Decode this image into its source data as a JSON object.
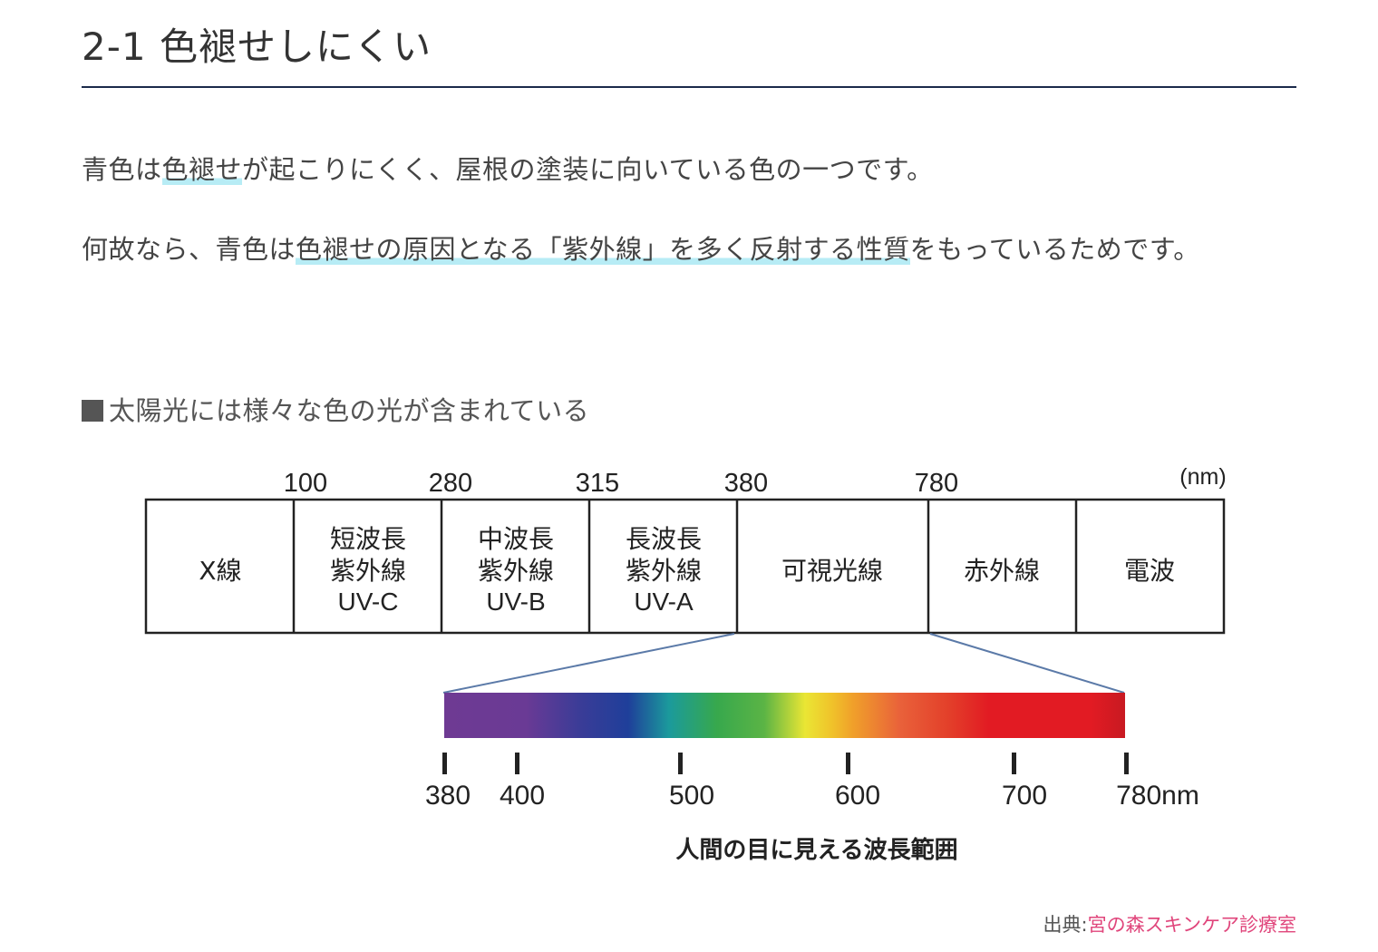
{
  "section": {
    "heading": "2-1 色褪せしにくい"
  },
  "paragraphs": [
    {
      "pre": "青色は",
      "highlight": "色褪せ",
      "post": "が起こりにくく、屋根の塗装に向いている色の一つです。"
    },
    {
      "pre": "何故なら、青色は",
      "highlight": "色褪せの原因となる「紫外線」を多く反射する性質",
      "post": "をもっているためです。"
    }
  ],
  "figure": {
    "caption": "太陽光には様々な色の光が含まれている",
    "unit_label": "(nm)",
    "boundaries": [
      "100",
      "280",
      "315",
      "380",
      "780"
    ],
    "bands": [
      {
        "lines": [
          "X線"
        ]
      },
      {
        "lines": [
          "短波長",
          "紫外線",
          "UV-C"
        ]
      },
      {
        "lines": [
          "中波長",
          "紫外線",
          "UV-B"
        ]
      },
      {
        "lines": [
          "長波長",
          "紫外線",
          "UV-A"
        ]
      },
      {
        "lines": [
          "可視光線"
        ]
      },
      {
        "lines": [
          "赤外線"
        ]
      },
      {
        "lines": [
          "電波"
        ]
      }
    ],
    "visible_ticks": [
      "380",
      "400",
      "500",
      "600",
      "700",
      "780nm"
    ],
    "visible_caption": "人間の目に見える波長範囲",
    "colors": {
      "violet": "#6e3a93",
      "blue": "#1f3f9a",
      "teal": "#1b9a9c",
      "green": "#37a84d",
      "yellow": "#eae634",
      "orange": "#f0a02a",
      "red": "#e21b23"
    }
  },
  "source": {
    "label": "出典:",
    "link": "宮の森スキンケア診療室"
  }
}
